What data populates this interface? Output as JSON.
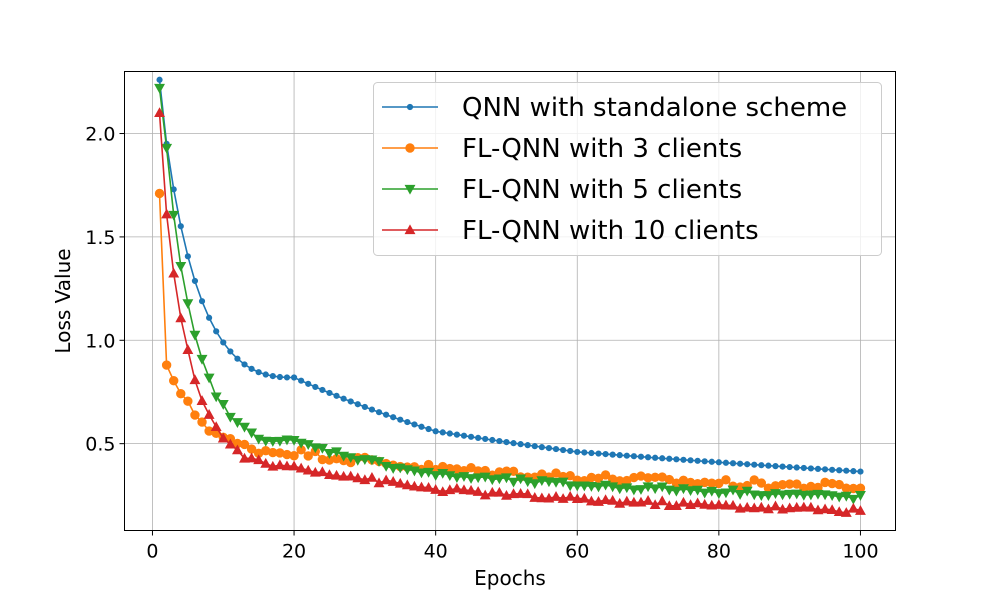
{
  "chart_data": {
    "type": "line",
    "title": "",
    "xlabel": "Epochs",
    "ylabel": "Loss Value",
    "xlim": [
      -3.95,
      104.95
    ],
    "ylim": [
      0.08,
      2.3
    ],
    "xticks": [
      "0",
      "20",
      "40",
      "60",
      "80",
      "100"
    ],
    "yticks": [
      "0.5",
      "1.0",
      "1.5",
      "2.0"
    ],
    "grid": true,
    "legend_position": "top-right",
    "series": [
      {
        "name": "QNN with standalone scheme",
        "color": "#1f77b4",
        "marker": "point",
        "y0": 2.26,
        "y1": 1.95,
        "y20": 0.82,
        "y40": 0.56,
        "y60": 0.46,
        "y80": 0.41,
        "y100": 0.365,
        "noise": 0.0
      },
      {
        "name": "FL-QNN with 3 clients",
        "color": "#ff7f0e",
        "marker": "circle",
        "y0": 1.71,
        "y1": 0.88,
        "y20": 0.46,
        "y40": 0.38,
        "y60": 0.34,
        "y80": 0.31,
        "y100": 0.29,
        "noise": 0.02
      },
      {
        "name": "FL-QNN with 5 clients",
        "color": "#2ca02c",
        "marker": "triangle-down",
        "y0": 2.22,
        "y1": 1.93,
        "y20": 0.51,
        "y40": 0.35,
        "y60": 0.3,
        "y80": 0.27,
        "y100": 0.24,
        "noise": 0.012
      },
      {
        "name": "FL-QNN with 10 clients",
        "color": "#d62728",
        "marker": "triangle-up",
        "y0": 2.1,
        "y1": 1.61,
        "y20": 0.39,
        "y40": 0.28,
        "y60": 0.23,
        "y80": 0.2,
        "y100": 0.175,
        "noise": 0.012
      }
    ]
  }
}
